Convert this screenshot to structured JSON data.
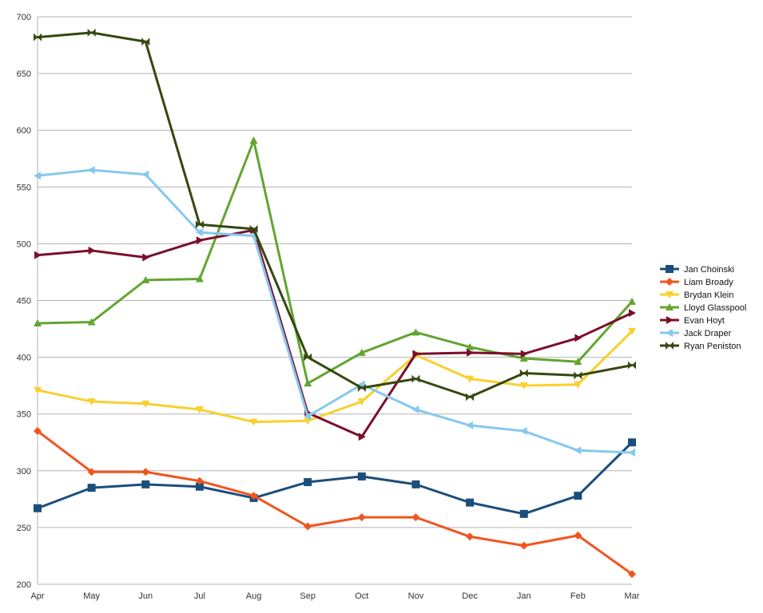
{
  "chart_data": {
    "type": "line",
    "title": "",
    "xlabel": "",
    "ylabel": "",
    "categories": [
      "Apr",
      "May",
      "Jun",
      "Jul",
      "Aug",
      "Sep",
      "Oct",
      "Nov",
      "Dec",
      "Jan",
      "Feb",
      "Mar"
    ],
    "ylim": [
      200,
      700
    ],
    "yticks": [
      200,
      250,
      300,
      350,
      400,
      450,
      500,
      550,
      600,
      650,
      700
    ],
    "grid": true,
    "legend_position": "right",
    "series": [
      {
        "name": "Jan Choinski",
        "color": "#1a4e7d",
        "marker": "square",
        "values": [
          267,
          285,
          288,
          286,
          276,
          290,
          295,
          288,
          272,
          262,
          278,
          325
        ]
      },
      {
        "name": "Liam Broady",
        "color": "#f2541f",
        "marker": "diamond",
        "values": [
          335,
          299,
          299,
          291,
          278,
          251,
          259,
          259,
          242,
          234,
          243,
          209
        ]
      },
      {
        "name": "Brydan Klein",
        "color": "#f9d02d",
        "marker": "triangle-down",
        "values": [
          371,
          361,
          359,
          354,
          343,
          344,
          361,
          402,
          381,
          375,
          376,
          423
        ]
      },
      {
        "name": "Lloyd Glasspool",
        "color": "#62a531",
        "marker": "triangle-up",
        "values": [
          430,
          431,
          468,
          469,
          591,
          377,
          404,
          422,
          409,
          399,
          396,
          449
        ]
      },
      {
        "name": "Evan Hoyt",
        "color": "#7a0f2c",
        "marker": "triangle-right",
        "values": [
          490,
          494,
          488,
          503,
          512,
          351,
          330,
          403,
          404,
          403,
          417,
          439
        ]
      },
      {
        "name": "Jack Draper",
        "color": "#87c8ef",
        "marker": "triangle-left",
        "values": [
          560,
          565,
          561,
          510,
          507,
          348,
          376,
          354,
          340,
          335,
          318,
          316
        ]
      },
      {
        "name": "Ryan Peniston",
        "color": "#36470f",
        "marker": "bowtie",
        "values": [
          682,
          686,
          678,
          517,
          513,
          400,
          373,
          381,
          365,
          386,
          384,
          393
        ]
      }
    ]
  }
}
